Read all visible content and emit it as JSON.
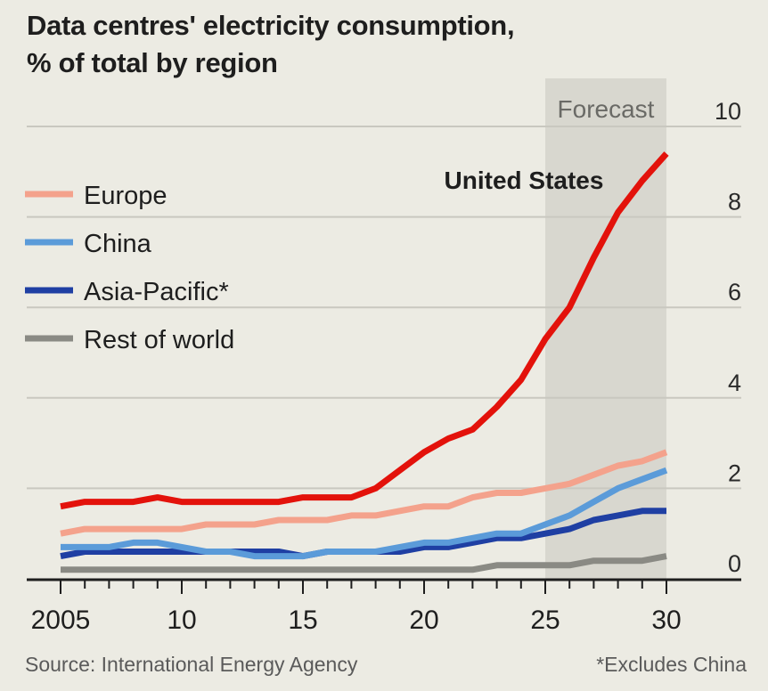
{
  "chart_data": {
    "type": "line",
    "title": "Data centres' electricity consumption,",
    "subtitle": "% of total by region",
    "xlabel": "",
    "ylabel": "",
    "x": [
      2005,
      2006,
      2007,
      2008,
      2009,
      2010,
      2011,
      2012,
      2013,
      2014,
      2015,
      2016,
      2017,
      2018,
      2019,
      2020,
      2021,
      2022,
      2023,
      2024,
      2025,
      2026,
      2027,
      2028,
      2029,
      2030
    ],
    "xlim": [
      2005,
      2030
    ],
    "ylim": [
      0,
      10
    ],
    "yticks": [
      0,
      2,
      4,
      6,
      8,
      10
    ],
    "xticks": [
      2005,
      2010,
      2015,
      2020,
      2025,
      2030
    ],
    "xtick_labels": [
      "2005",
      "10",
      "15",
      "20",
      "25",
      "30"
    ],
    "grid": true,
    "y_axis_side": "right",
    "legend_position": "top-left",
    "forecast_region": {
      "label": "Forecast",
      "from": 2025,
      "to": 2030
    },
    "annotations": [
      {
        "text": "United States",
        "series": "United States"
      }
    ],
    "series": [
      {
        "name": "United States",
        "color": "#e3120b",
        "in_legend": false,
        "values": [
          1.6,
          1.7,
          1.7,
          1.7,
          1.8,
          1.7,
          1.7,
          1.7,
          1.7,
          1.7,
          1.8,
          1.8,
          1.8,
          2.0,
          2.4,
          2.8,
          3.1,
          3.3,
          3.8,
          4.4,
          5.3,
          6.0,
          7.1,
          8.1,
          8.8,
          9.4
        ]
      },
      {
        "name": "Europe",
        "color": "#f4a28c",
        "in_legend": true,
        "values": [
          1.0,
          1.1,
          1.1,
          1.1,
          1.1,
          1.1,
          1.2,
          1.2,
          1.2,
          1.3,
          1.3,
          1.3,
          1.4,
          1.4,
          1.5,
          1.6,
          1.6,
          1.8,
          1.9,
          1.9,
          2.0,
          2.1,
          2.3,
          2.5,
          2.6,
          2.8
        ]
      },
      {
        "name": "China",
        "color": "#5b9bd9",
        "in_legend": true,
        "values": [
          0.7,
          0.7,
          0.7,
          0.8,
          0.8,
          0.7,
          0.6,
          0.6,
          0.5,
          0.5,
          0.5,
          0.6,
          0.6,
          0.6,
          0.7,
          0.8,
          0.8,
          0.9,
          1.0,
          1.0,
          1.2,
          1.4,
          1.7,
          2.0,
          2.2,
          2.4
        ]
      },
      {
        "name": "Asia-Pacific*",
        "color": "#1f3fa3",
        "in_legend": true,
        "values": [
          0.5,
          0.6,
          0.6,
          0.6,
          0.6,
          0.6,
          0.6,
          0.6,
          0.6,
          0.6,
          0.5,
          0.6,
          0.6,
          0.6,
          0.6,
          0.7,
          0.7,
          0.8,
          0.9,
          0.9,
          1.0,
          1.1,
          1.3,
          1.4,
          1.5,
          1.5
        ]
      },
      {
        "name": "Rest of world",
        "color": "#8a8a84",
        "in_legend": true,
        "values": [
          0.2,
          0.2,
          0.2,
          0.2,
          0.2,
          0.2,
          0.2,
          0.2,
          0.2,
          0.2,
          0.2,
          0.2,
          0.2,
          0.2,
          0.2,
          0.2,
          0.2,
          0.2,
          0.3,
          0.3,
          0.3,
          0.3,
          0.4,
          0.4,
          0.4,
          0.5
        ]
      }
    ]
  },
  "footer": {
    "source": "Source: International Energy Agency",
    "note": "*Excludes China"
  }
}
